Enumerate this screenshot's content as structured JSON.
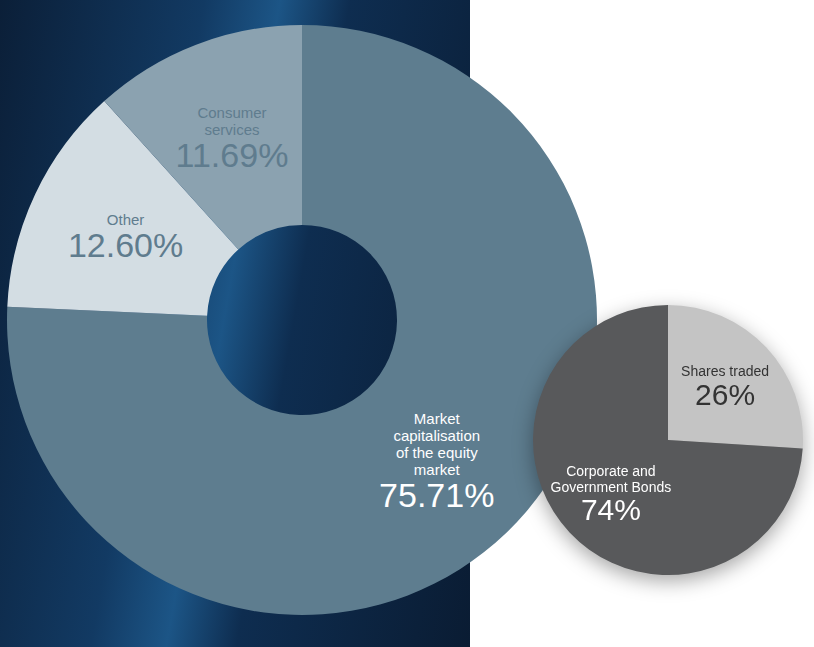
{
  "chart_data": [
    {
      "type": "donut",
      "categories": [
        "Market capitalisation of the equity market",
        "Other",
        "Consumer services"
      ],
      "values": [
        75.71,
        12.6,
        11.69
      ],
      "value_labels": [
        "75.71%",
        "12.60%",
        "11.69%"
      ],
      "colors": [
        "#5e7d8f",
        "#d3dde3",
        "#8ba2b0"
      ],
      "data_labels": true
    },
    {
      "type": "pie",
      "categories": [
        "Shares traded",
        "Corporate and Government Bonds"
      ],
      "values": [
        26,
        74
      ],
      "value_labels": [
        "26%",
        "74%"
      ],
      "colors": [
        "#c4c4c4",
        "#58595b"
      ],
      "data_labels": true
    }
  ]
}
